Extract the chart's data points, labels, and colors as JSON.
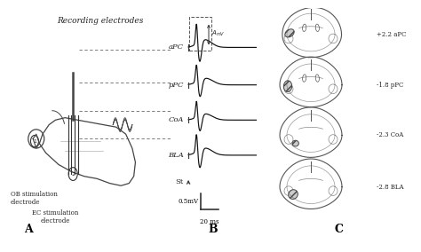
{
  "panel_A_label": "A",
  "panel_B_label": "B",
  "panel_C_label": "C",
  "recording_label": "Recording electrodes",
  "OB_label": "OB stimulation\nelectrode",
  "EC_label": "EC stimulation\nelectrode",
  "trace_labels": [
    "aPC",
    "pPC",
    "CoA",
    "BLA"
  ],
  "St_label": "St",
  "Amv_label": "A_{mV}",
  "scale_v": "0.5mV",
  "scale_t": "20 ms",
  "brain_labels": [
    "+2.2 aPC",
    "-1.8 pPC",
    "-2.3 CoA",
    "-2.8 BLA"
  ],
  "fontsize_main": 6.5,
  "fontsize_small": 5.0,
  "fontsize_panel": 9,
  "fontsize_label": 6.0
}
